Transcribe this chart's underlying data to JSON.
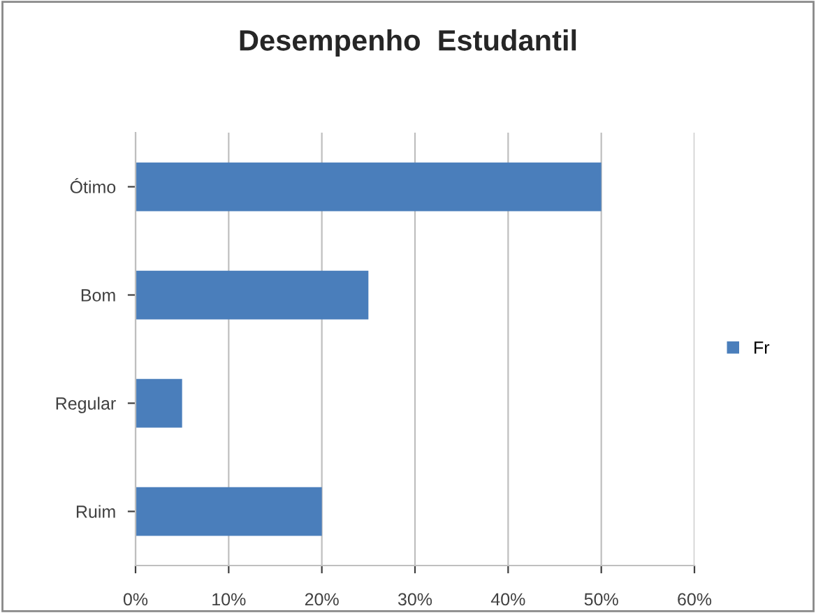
{
  "chart_data": {
    "type": "bar",
    "orientation": "horizontal",
    "title": "Desempenho  Estudantil",
    "categories": [
      "Ótimo",
      "Bom",
      "Regular",
      "Ruim"
    ],
    "series": [
      {
        "name": "Fr",
        "color": "#4a7ebb",
        "values": [
          50,
          25,
          5,
          20
        ]
      }
    ],
    "xlim": [
      0,
      60
    ],
    "xticks": [
      {
        "value": 0,
        "label": "0%"
      },
      {
        "value": 10,
        "label": "10%"
      },
      {
        "value": 20,
        "label": "20%"
      },
      {
        "value": 30,
        "label": "30%"
      },
      {
        "value": 40,
        "label": "40%"
      },
      {
        "value": 50,
        "label": "50%"
      },
      {
        "value": 60,
        "label": "60%"
      }
    ],
    "grid": "x",
    "legend": "right"
  }
}
